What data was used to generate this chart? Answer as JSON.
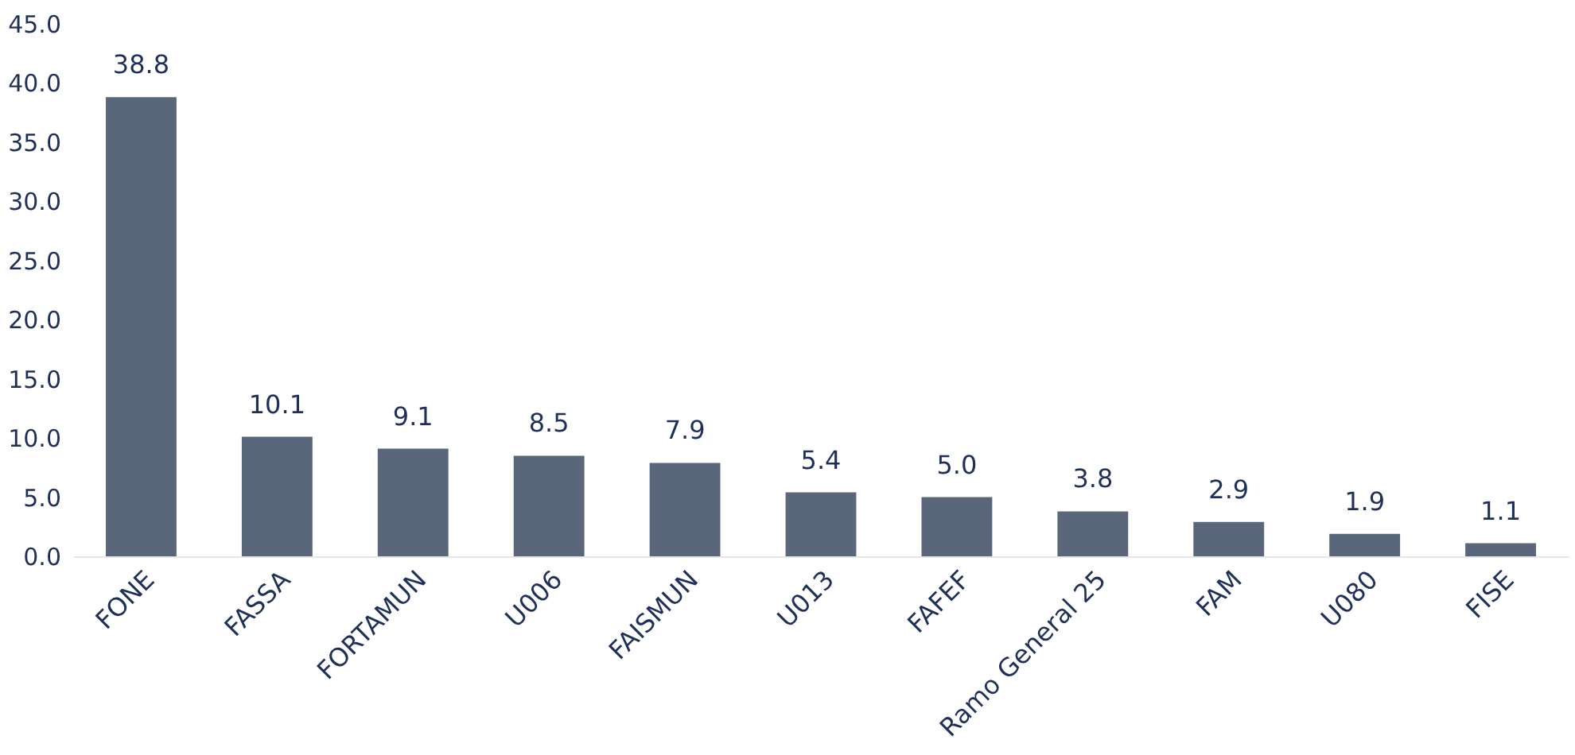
{
  "chart_data": {
    "type": "bar",
    "categories": [
      "FONE",
      "FASSA",
      "FORTAMUN",
      "U006",
      "FAISMUN",
      "U013",
      "FAFEF",
      "Ramo General 25",
      "FAM",
      "U080",
      "FISE"
    ],
    "values": [
      38.8,
      10.1,
      9.1,
      8.5,
      7.9,
      5.4,
      5.0,
      3.8,
      2.9,
      1.9,
      1.1
    ],
    "value_labels": [
      "38.8",
      "10.1",
      "9.1",
      "8.5",
      "7.9",
      "5.4",
      "5.0",
      "3.8",
      "2.9",
      "1.9",
      "1.1"
    ],
    "color": "#5a677b",
    "ylim": [
      0,
      45
    ],
    "yticks": [
      {
        "value": 0,
        "label": "0.0"
      },
      {
        "value": 5,
        "label": "5.0"
      },
      {
        "value": 10,
        "label": "10.0"
      },
      {
        "value": 15,
        "label": "15.0"
      },
      {
        "value": 20,
        "label": "20.0"
      },
      {
        "value": 25,
        "label": "25.0"
      },
      {
        "value": 30,
        "label": "30.0"
      },
      {
        "value": 35,
        "label": "35.0"
      },
      {
        "value": 40,
        "label": "40.0"
      },
      {
        "value": 45,
        "label": "45.0"
      }
    ],
    "grid": false
  }
}
